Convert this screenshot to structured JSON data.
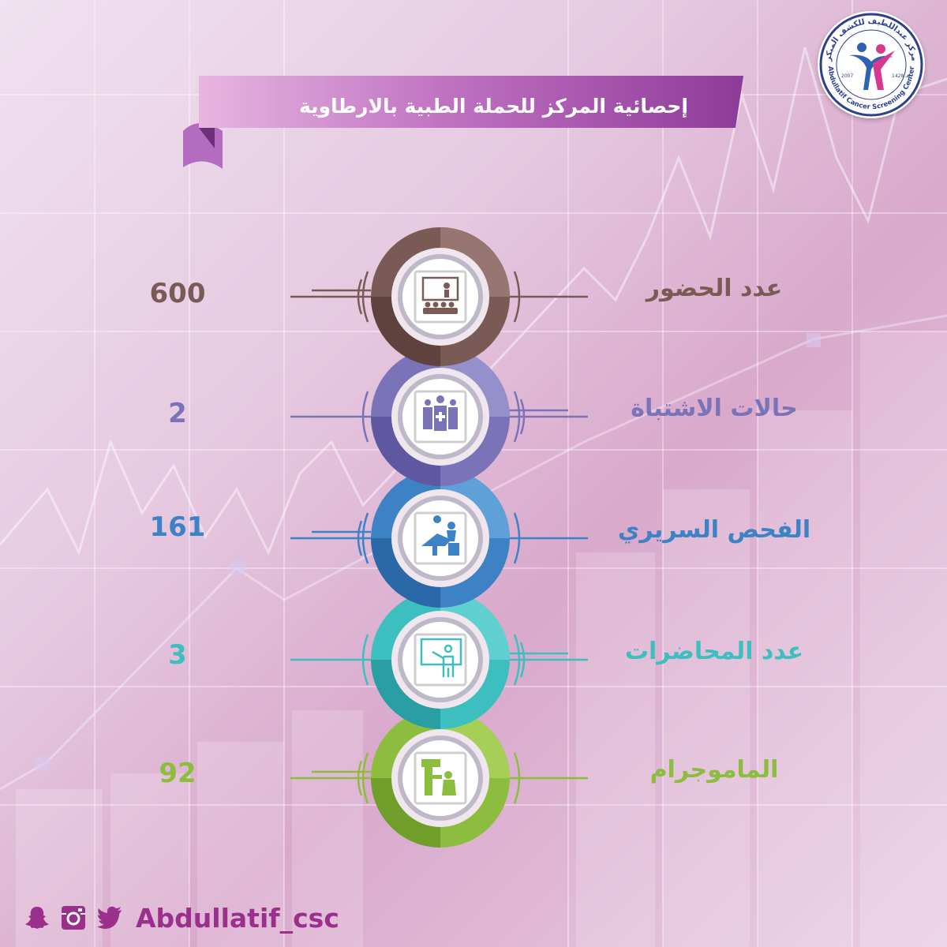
{
  "logo": {
    "arabic_name": "مركز عبداللطيف للكشف المبكر",
    "english_name": "Abdullatif Cancer Screening Center",
    "year_gregorian": "2007",
    "year_hijri": "1428 هـ",
    "icon": "people-logo-icon"
  },
  "banner": {
    "title": "إحصائية المركز للحملة الطبية بالارطاوية"
  },
  "stats": [
    {
      "label": "عدد الحضور",
      "value": "600",
      "color": "#7a5a55",
      "icon": "audience-presentation-icon"
    },
    {
      "label": "حالات الاشتباة",
      "value": "2",
      "color": "#7b73b8",
      "icon": "group-medical-icon"
    },
    {
      "label": "الفحص السريري",
      "value": "161",
      "color": "#3c82c4",
      "icon": "clinical-exam-icon"
    },
    {
      "label": "عدد المحاضرات",
      "value": "3",
      "color": "#3dbfc0",
      "icon": "lecturer-board-icon"
    },
    {
      "label": "الماموجرام",
      "value": "92",
      "color": "#8dbd3e",
      "icon": "mammogram-machine-icon"
    }
  ],
  "footer": {
    "handle": "Abdullatif_csc",
    "social_icons": [
      "snapchat-icon",
      "instagram-icon",
      "twitter-icon"
    ],
    "color": "#9a2f8c"
  }
}
